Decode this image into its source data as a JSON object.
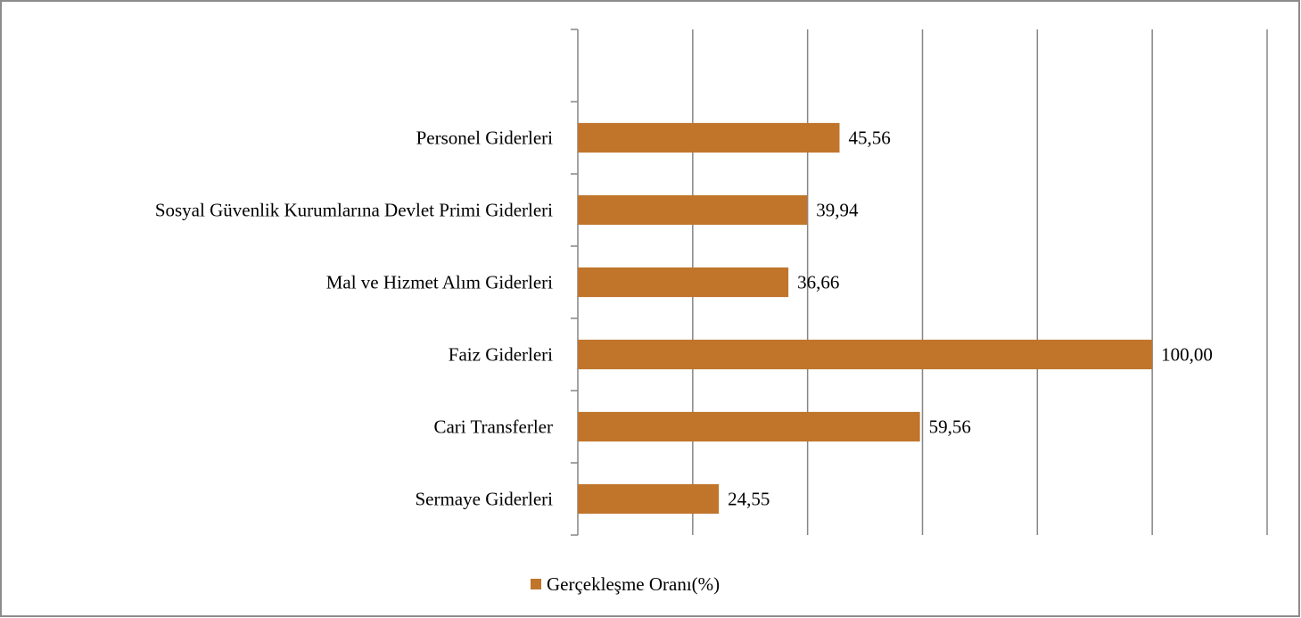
{
  "chart_data": {
    "type": "bar",
    "orientation": "horizontal",
    "categories": [
      null,
      "Personel Giderleri",
      "Sosyal Güvenlik Kurumlarına Devlet Primi Giderleri",
      "Mal ve Hizmet Alım Giderleri",
      "Faiz Giderleri",
      "Cari Transferler",
      "Sermaye Giderleri"
    ],
    "series": [
      {
        "name": "Gerçekleşme Oranı(%)",
        "color": "#c0752b",
        "values": [
          null,
          45.56,
          39.94,
          36.66,
          100.0,
          59.56,
          24.55
        ],
        "value_labels": [
          null,
          "45,56",
          "39,94",
          "36,66",
          "100,00",
          "59,56",
          "24,55"
        ]
      }
    ],
    "xlim": [
      0,
      120
    ],
    "xticks": [
      0,
      20,
      40,
      60,
      80,
      100,
      120
    ],
    "grid": true,
    "legend": "bottom"
  }
}
